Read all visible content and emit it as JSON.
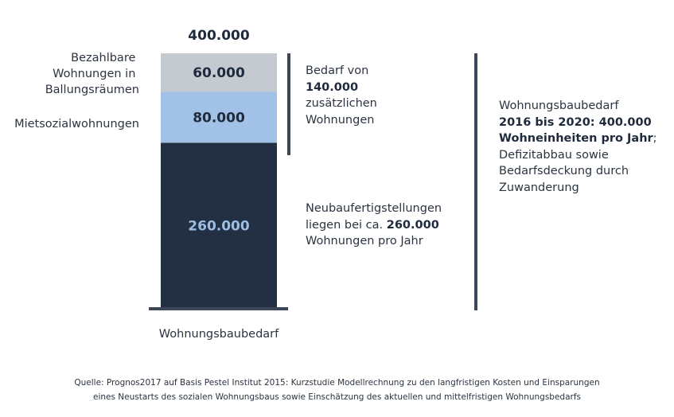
{
  "chart_data": {
    "type": "bar",
    "stacked": true,
    "xlabel": "Wohnungsbaubedarf",
    "total": "400.000",
    "segments": [
      {
        "name": "",
        "value": 260000,
        "label": "260.000",
        "color": "#233044",
        "text_color": "#9dbde4"
      },
      {
        "name": "Mietsozialwohnungen",
        "value": 80000,
        "label": "80.000",
        "color": "#a2c1e6",
        "text_color": "#1f2b3c"
      },
      {
        "name": "Bezahlbare Wohnungen in Ballungsräumen",
        "name_lines": [
          "Bezahlbare",
          "Wohnungen in",
          "Ballungsräumen"
        ],
        "value": 60000,
        "label": "60.000",
        "color": "#c5cad1",
        "text_color": "#1f2b3c"
      }
    ],
    "ylim": [
      0,
      400000
    ],
    "axis_color": "#3d4757"
  },
  "notes": {
    "bedarf": {
      "line1": "Bedarf von",
      "line2": "140.000",
      "line3": "zusätzlichen",
      "line4": "Wohnungen"
    },
    "neubau": {
      "line1": "Neubaufertigstellungen",
      "line2_prefix": "liegen bei ca. ",
      "line2_bold": "260.000",
      "line3": "Wohnungen pro Jahr"
    },
    "total": {
      "line1": "Wohnungsbaubedarf",
      "line2": "2016 bis 2020: 400.000",
      "line3": "Wohneinheiten pro Jahr",
      "line3_suffix": ";",
      "line4": "Defizitabbau sowie",
      "line5": "Bedarfsdeckung durch",
      "line6": "Zuwanderung"
    }
  },
  "source": {
    "line1": "Quelle: Prognos2017 auf Basis Pestel Institut 2015: Kurzstudie Modellrechnung zu den langfristigen Kosten und Einsparungen",
    "line2": "eines Neustarts des sozialen Wohnungsbaus sowie Einschätzung des aktuellen und mittelfristigen Wohnungsbedarfs"
  }
}
